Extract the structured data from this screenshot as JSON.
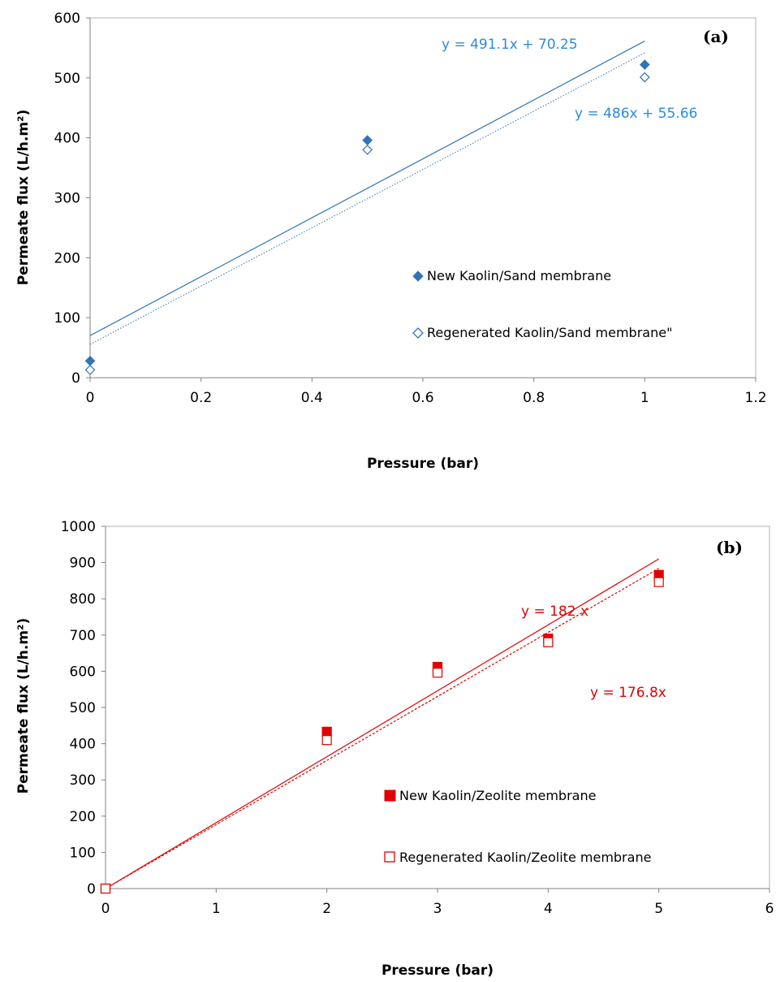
{
  "chart_data": [
    {
      "type": "scatter",
      "panel_label": "(a)",
      "xlabel": "Pressure (bar)",
      "ylabel": "Permeate flux (L/h.m²)",
      "xlim": [
        0,
        1.2
      ],
      "ylim": [
        0,
        600
      ],
      "x_ticks": [
        "0",
        "0.2",
        "0.4",
        "0.6",
        "0.8",
        "1",
        "1.2"
      ],
      "y_ticks": [
        "0",
        "100",
        "200",
        "300",
        "400",
        "500",
        "600"
      ],
      "grid": false,
      "legend_position": "right-center",
      "colors": {
        "series": "#2e75b6",
        "equation": "#2e8bd8"
      },
      "series": [
        {
          "name": "New Kaolin/Sand membrane",
          "marker": "filled-diamond",
          "x": [
            0,
            0.5,
            1
          ],
          "y": [
            28,
            396,
            522
          ]
        },
        {
          "name": "Regenerated Kaolin/Sand membrane\"",
          "marker": "open-diamond",
          "x": [
            0,
            0.5,
            1
          ],
          "y": [
            13,
            380,
            501
          ]
        }
      ],
      "trendlines": [
        {
          "equation": "y = 491.1x + 70.25",
          "slope": 491.1,
          "intercept": 70.25,
          "style": "solid"
        },
        {
          "equation": "y = 486x + 55.66",
          "slope": 486,
          "intercept": 55.66,
          "style": "dotted"
        }
      ]
    },
    {
      "type": "scatter",
      "panel_label": "(b)",
      "xlabel": "Pressure (bar)",
      "ylabel": "Permeate flux (L/h.m²)",
      "xlim": [
        0,
        6
      ],
      "ylim": [
        0,
        1000
      ],
      "x_ticks": [
        "0",
        "1",
        "2",
        "3",
        "4",
        "5",
        "6"
      ],
      "y_ticks": [
        "0",
        "100",
        "200",
        "300",
        "400",
        "500",
        "600",
        "700",
        "800",
        "900",
        "1000"
      ],
      "grid": false,
      "legend_position": "bottom-right",
      "colors": {
        "series": "#e00000",
        "equation": "#e00000"
      },
      "series": [
        {
          "name": "New Kaolin/Zeolite membrane",
          "marker": "filled-square",
          "x": [
            0,
            2,
            3,
            4,
            5
          ],
          "y": [
            0,
            433,
            612,
            690,
            866
          ]
        },
        {
          "name": "Regenerated Kaolin/Zeolite membrane",
          "marker": "open-square",
          "x": [
            0,
            2,
            3,
            4,
            5
          ],
          "y": [
            0,
            410,
            596,
            680,
            846
          ]
        }
      ],
      "trendlines": [
        {
          "equation": "y = 182 x",
          "slope": 182,
          "intercept": 0,
          "style": "solid"
        },
        {
          "equation": "y = 176.8x",
          "slope": 176.8,
          "intercept": 0,
          "style": "dashed"
        }
      ]
    }
  ]
}
